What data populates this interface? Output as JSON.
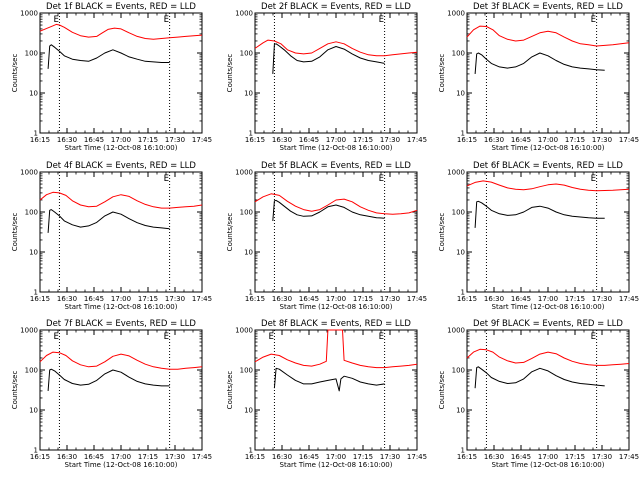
{
  "figure": {
    "xlabel": "Start Time (12-Oct-08 16:10:00)",
    "ylabel": "Counts/sec"
  },
  "chart_data": [
    {
      "type": "line",
      "title": "Det 1f BLACK = Events, RED = LLD",
      "x_ticks": [
        "16:15",
        "16:30",
        "16:45",
        "17:00",
        "17:15",
        "17:30",
        "17:45"
      ],
      "y_ticks": [
        "1",
        "10",
        "100",
        "1000"
      ],
      "ylim": [
        1,
        1000
      ],
      "xlim": [
        0,
        100
      ],
      "scale_y": "log",
      "markers": [
        {
          "x": 12,
          "label": "E"
        },
        {
          "x": 80,
          "label": "E"
        }
      ],
      "series": [
        {
          "color": "#ff0000",
          "x": [
            0,
            8,
            10,
            12,
            15,
            20,
            25,
            30,
            35,
            38,
            42,
            46,
            50,
            55,
            60,
            65,
            70,
            75,
            80,
            85,
            90,
            95,
            100
          ],
          "values": [
            350,
            480,
            520,
            500,
            440,
            330,
            270,
            250,
            260,
            310,
            390,
            420,
            400,
            320,
            260,
            230,
            220,
            230,
            240,
            250,
            260,
            270,
            280
          ]
        },
        {
          "color": "#000000",
          "x": [
            5,
            6,
            7,
            9,
            12,
            15,
            20,
            25,
            30,
            35,
            40,
            45,
            50,
            55,
            60,
            65,
            70,
            75,
            80
          ],
          "values": [
            40,
            150,
            160,
            140,
            110,
            85,
            70,
            65,
            62,
            75,
            100,
            120,
            100,
            80,
            70,
            62,
            60,
            58,
            58
          ]
        }
      ]
    },
    {
      "type": "line",
      "title": "Det 2f BLACK = Events, RED = LLD",
      "x_ticks": [
        "16:15",
        "16:30",
        "16:45",
        "17:00",
        "17:15",
        "17:30",
        "17:45"
      ],
      "y_ticks": [
        "1",
        "10",
        "100",
        "1000"
      ],
      "ylim": [
        1,
        1000
      ],
      "xlim": [
        0,
        100
      ],
      "scale_y": "log",
      "markers": [
        {
          "x": 12,
          "label": ""
        },
        {
          "x": 80,
          "label": "E"
        }
      ],
      "series": [
        {
          "color": "#ff0000",
          "x": [
            0,
            5,
            8,
            12,
            16,
            20,
            25,
            30,
            35,
            40,
            45,
            50,
            55,
            60,
            65,
            70,
            75,
            80,
            85,
            90,
            95,
            100
          ],
          "values": [
            130,
            180,
            210,
            200,
            170,
            120,
            100,
            95,
            100,
            130,
            170,
            190,
            170,
            130,
            105,
            90,
            85,
            85,
            90,
            95,
            100,
            105
          ]
        },
        {
          "color": "#000000",
          "x": [
            11,
            12,
            13,
            15,
            18,
            22,
            26,
            30,
            35,
            40,
            45,
            50,
            55,
            60,
            65,
            70,
            75,
            80
          ],
          "values": [
            30,
            165,
            170,
            150,
            120,
            85,
            65,
            60,
            62,
            80,
            120,
            145,
            125,
            95,
            75,
            65,
            60,
            55
          ]
        }
      ]
    },
    {
      "type": "line",
      "title": "Det 3f BLACK = Events, RED = LLD",
      "x_ticks": [
        "16:15",
        "16:30",
        "16:45",
        "17:00",
        "17:15",
        "17:30",
        "17:45"
      ],
      "y_ticks": [
        "1",
        "10",
        "100",
        "1000"
      ],
      "ylim": [
        1,
        1000
      ],
      "xlim": [
        0,
        100
      ],
      "scale_y": "log",
      "markers": [
        {
          "x": 12,
          "label": ""
        },
        {
          "x": 80,
          "label": "E"
        }
      ],
      "series": [
        {
          "color": "#ff0000",
          "x": [
            0,
            4,
            8,
            12,
            16,
            20,
            25,
            30,
            35,
            40,
            45,
            50,
            55,
            60,
            65,
            70,
            75,
            80,
            85,
            90,
            95,
            100
          ],
          "values": [
            250,
            380,
            470,
            460,
            380,
            270,
            220,
            200,
            210,
            260,
            320,
            350,
            320,
            250,
            200,
            170,
            160,
            150,
            155,
            160,
            170,
            180
          ]
        },
        {
          "color": "#000000",
          "x": [
            5,
            6,
            7,
            9,
            12,
            15,
            20,
            25,
            30,
            35,
            40,
            45,
            50,
            55,
            60,
            65,
            70,
            75,
            80,
            85
          ],
          "values": [
            30,
            95,
            100,
            90,
            70,
            55,
            45,
            42,
            45,
            55,
            80,
            100,
            85,
            65,
            52,
            45,
            42,
            40,
            38,
            37
          ]
        }
      ]
    },
    {
      "type": "line",
      "title": "Det 4f BLACK = Events, RED = LLD",
      "x_ticks": [
        "16:15",
        "16:30",
        "16:45",
        "17:00",
        "17:15",
        "17:30",
        "17:45"
      ],
      "y_ticks": [
        "1",
        "10",
        "100",
        "1000"
      ],
      "ylim": [
        1,
        1000
      ],
      "xlim": [
        0,
        100
      ],
      "scale_y": "log",
      "markers": [
        {
          "x": 12,
          "label": ""
        },
        {
          "x": 80,
          "label": "E"
        }
      ],
      "series": [
        {
          "color": "#ff0000",
          "x": [
            0,
            4,
            8,
            12,
            16,
            20,
            25,
            30,
            35,
            40,
            45,
            50,
            55,
            60,
            65,
            70,
            75,
            80,
            85,
            90,
            95,
            100
          ],
          "values": [
            200,
            270,
            310,
            300,
            260,
            190,
            150,
            135,
            140,
            180,
            240,
            270,
            245,
            190,
            155,
            135,
            125,
            125,
            130,
            135,
            140,
            150
          ]
        },
        {
          "color": "#000000",
          "x": [
            5,
            6,
            7,
            9,
            12,
            15,
            20,
            25,
            30,
            35,
            40,
            45,
            50,
            55,
            60,
            65,
            70,
            75,
            80
          ],
          "values": [
            30,
            110,
            115,
            100,
            80,
            60,
            48,
            42,
            45,
            55,
            80,
            100,
            88,
            68,
            54,
            46,
            42,
            40,
            38
          ]
        }
      ]
    },
    {
      "type": "line",
      "title": "Det 5f BLACK = Events, RED = LLD",
      "x_ticks": [
        "16:15",
        "16:30",
        "16:45",
        "17:00",
        "17:15",
        "17:30",
        "17:45"
      ],
      "y_ticks": [
        "1",
        "10",
        "100",
        "1000"
      ],
      "ylim": [
        1,
        1000
      ],
      "xlim": [
        0,
        100
      ],
      "scale_y": "log",
      "markers": [
        {
          "x": 12,
          "label": ""
        },
        {
          "x": 80,
          "label": "E"
        }
      ],
      "series": [
        {
          "color": "#ff0000",
          "x": [
            0,
            5,
            10,
            15,
            20,
            25,
            30,
            35,
            40,
            45,
            50,
            55,
            60,
            65,
            70,
            75,
            80,
            85,
            90,
            95,
            100
          ],
          "values": [
            180,
            240,
            285,
            260,
            185,
            140,
            115,
            105,
            115,
            150,
            200,
            210,
            180,
            135,
            110,
            95,
            90,
            88,
            90,
            95,
            110
          ]
        },
        {
          "color": "#000000",
          "x": [
            11,
            12,
            13,
            15,
            18,
            22,
            26,
            30,
            35,
            40,
            45,
            50,
            55,
            60,
            65,
            70,
            75,
            80
          ],
          "values": [
            60,
            190,
            195,
            175,
            140,
            105,
            85,
            78,
            80,
            100,
            135,
            150,
            130,
            100,
            85,
            78,
            72,
            70
          ]
        }
      ]
    },
    {
      "type": "line",
      "title": "Det 6f BLACK = Events, RED = LLD",
      "x_ticks": [
        "16:15",
        "16:30",
        "16:45",
        "17:00",
        "17:15",
        "17:30",
        "17:45"
      ],
      "y_ticks": [
        "1",
        "10",
        "100",
        "1000"
      ],
      "ylim": [
        1,
        1000
      ],
      "xlim": [
        0,
        100
      ],
      "scale_y": "log",
      "markers": [
        {
          "x": 12,
          "label": ""
        },
        {
          "x": 80,
          "label": "E"
        }
      ],
      "series": [
        {
          "color": "#ff0000",
          "x": [
            0,
            5,
            10,
            15,
            20,
            25,
            30,
            35,
            40,
            45,
            50,
            55,
            60,
            65,
            70,
            75,
            80,
            85,
            90,
            95,
            100
          ],
          "values": [
            450,
            550,
            600,
            560,
            470,
            400,
            370,
            360,
            380,
            430,
            480,
            500,
            470,
            410,
            370,
            350,
            340,
            345,
            350,
            360,
            370
          ]
        },
        {
          "color": "#000000",
          "x": [
            5,
            6,
            7,
            9,
            12,
            15,
            20,
            25,
            30,
            35,
            40,
            45,
            50,
            55,
            60,
            65,
            70,
            75,
            80,
            85
          ],
          "values": [
            40,
            180,
            185,
            170,
            140,
            110,
            90,
            82,
            85,
            100,
            130,
            140,
            125,
            100,
            85,
            78,
            75,
            72,
            70,
            70
          ]
        }
      ]
    },
    {
      "type": "line",
      "title": "Det 7f BLACK = Events, RED = LLD",
      "x_ticks": [
        "16:15",
        "16:30",
        "16:45",
        "17:00",
        "17:15",
        "17:30",
        "17:45"
      ],
      "y_ticks": [
        "1",
        "10",
        "100",
        "1000"
      ],
      "ylim": [
        1,
        1000
      ],
      "xlim": [
        0,
        100
      ],
      "scale_y": "log",
      "markers": [
        {
          "x": 12,
          "label": "E"
        },
        {
          "x": 80,
          "label": "E"
        }
      ],
      "series": [
        {
          "color": "#ff0000",
          "x": [
            0,
            4,
            8,
            12,
            16,
            20,
            25,
            30,
            35,
            40,
            45,
            50,
            55,
            60,
            65,
            70,
            75,
            80,
            85,
            90,
            95,
            100
          ],
          "values": [
            160,
            230,
            280,
            270,
            230,
            170,
            135,
            120,
            125,
            160,
            220,
            250,
            225,
            175,
            140,
            120,
            110,
            105,
            105,
            110,
            115,
            120
          ]
        },
        {
          "color": "#000000",
          "x": [
            5,
            6,
            7,
            9,
            12,
            15,
            20,
            25,
            30,
            35,
            40,
            45,
            50,
            55,
            60,
            65,
            70,
            75,
            80
          ],
          "values": [
            30,
            100,
            105,
            95,
            75,
            58,
            46,
            42,
            44,
            55,
            80,
            100,
            88,
            66,
            52,
            45,
            42,
            40,
            40
          ]
        }
      ]
    },
    {
      "type": "line",
      "title": "Det 8f BLACK = Events, RED = LLD",
      "x_ticks": [
        "16:15",
        "16:30",
        "16:45",
        "17:00",
        "17:15",
        "17:30",
        "17:45"
      ],
      "y_ticks": [
        "1",
        "10",
        "100",
        "1000"
      ],
      "ylim": [
        1,
        1000
      ],
      "xlim": [
        0,
        100
      ],
      "scale_y": "log",
      "markers": [
        {
          "x": 12,
          "label": "E"
        },
        {
          "x": 80,
          "label": "E"
        }
      ],
      "series": [
        {
          "color": "#ff0000",
          "x": [
            0,
            5,
            10,
            15,
            20,
            25,
            30,
            35,
            40,
            44,
            45,
            46,
            53,
            54,
            55,
            60,
            65,
            70,
            75,
            80,
            85,
            90,
            95,
            100
          ],
          "values": [
            160,
            210,
            250,
            230,
            180,
            150,
            130,
            125,
            140,
            165,
            1000,
            1000,
            1000,
            1000,
            175,
            150,
            130,
            120,
            115,
            115,
            120,
            125,
            130,
            140
          ]
        },
        {
          "color": "#000000",
          "x": [
            12,
            13,
            15,
            20,
            25,
            30,
            35,
            40,
            45,
            50,
            52,
            53,
            55,
            60,
            65,
            70,
            75,
            80
          ],
          "values": [
            35,
            110,
            105,
            75,
            55,
            45,
            45,
            50,
            55,
            60,
            30,
            60,
            70,
            62,
            50,
            45,
            42,
            45
          ]
        }
      ]
    },
    {
      "type": "line",
      "title": "Det 9f BLACK = Events, RED = LLD",
      "x_ticks": [
        "16:15",
        "16:30",
        "16:45",
        "17:00",
        "17:15",
        "17:30",
        "17:45"
      ],
      "y_ticks": [
        "1",
        "10",
        "100",
        "1000"
      ],
      "ylim": [
        1,
        1000
      ],
      "xlim": [
        0,
        100
      ],
      "scale_y": "log",
      "markers": [
        {
          "x": 12,
          "label": ""
        },
        {
          "x": 80,
          "label": "E"
        }
      ],
      "series": [
        {
          "color": "#ff0000",
          "x": [
            0,
            4,
            8,
            12,
            16,
            20,
            25,
            30,
            35,
            40,
            45,
            50,
            55,
            60,
            65,
            70,
            75,
            80,
            85,
            90,
            95,
            100
          ],
          "values": [
            200,
            280,
            330,
            320,
            280,
            210,
            170,
            150,
            155,
            195,
            250,
            280,
            255,
            200,
            165,
            145,
            135,
            130,
            130,
            135,
            140,
            145
          ]
        },
        {
          "color": "#000000",
          "x": [
            5,
            6,
            7,
            9,
            12,
            15,
            20,
            25,
            30,
            35,
            40,
            45,
            50,
            55,
            60,
            65,
            70,
            75,
            80,
            85
          ],
          "values": [
            35,
            115,
            120,
            105,
            85,
            65,
            52,
            46,
            48,
            60,
            90,
            110,
            95,
            72,
            58,
            50,
            46,
            44,
            42,
            40
          ]
        }
      ]
    }
  ]
}
